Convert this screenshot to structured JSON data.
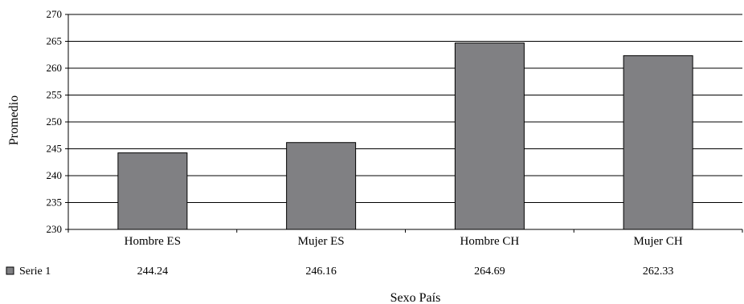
{
  "chart_data": {
    "type": "bar",
    "title": "",
    "xlabel": "Sexo País",
    "ylabel": "Promedio",
    "categories": [
      "Hombre ES",
      "Mujer ES",
      "Hombre CH",
      "Mujer CH"
    ],
    "series": [
      {
        "name": "Serie 1",
        "values": [
          244.24,
          246.16,
          264.69,
          262.33
        ]
      }
    ],
    "value_labels": [
      "244.24",
      "246.16",
      "264.69",
      "262.33"
    ],
    "ylim": [
      230,
      270
    ],
    "yticks": [
      230,
      235,
      240,
      245,
      250,
      255,
      260,
      265,
      270
    ],
    "grid": true,
    "legend": "data-table-bottom",
    "colors": {
      "bar": "#808083",
      "bar_stroke": "#000000",
      "grid": "#000000"
    }
  }
}
